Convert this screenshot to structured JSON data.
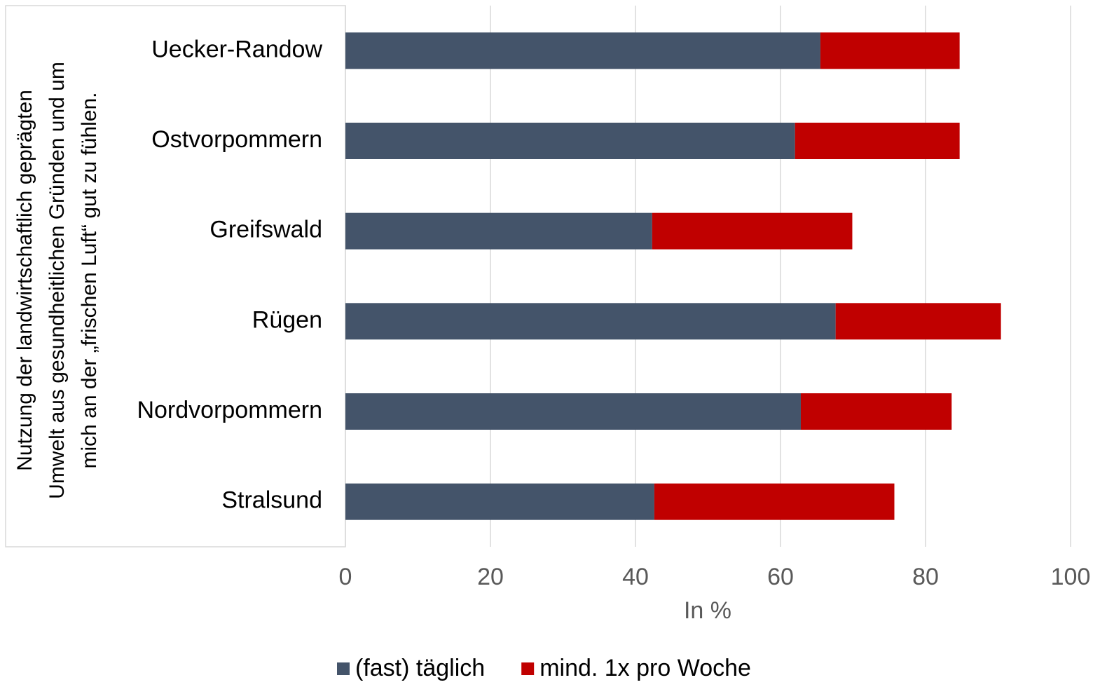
{
  "chart_data": {
    "type": "stacked-bar-horizontal",
    "ylabel": [
      "Nutzung der landwirtschaftlich geprägten",
      "Umwelt aus gesundheitlichen Gründen und um",
      "mich an der „frischen Luft“ gut zu fühlen."
    ],
    "xlabel": "In %",
    "categories": [
      "Uecker-Randow",
      "Ostvorpommern",
      "Greifswald",
      "Rügen",
      "Nordvorpommern",
      "Stralsund"
    ],
    "series": [
      {
        "name": "(fast) täglich",
        "color": "#44546a",
        "values": [
          65.5,
          62.0,
          42.3,
          67.6,
          62.8,
          42.6
        ]
      },
      {
        "name": "mind. 1x pro Woche",
        "color": "#c00000",
        "values": [
          19.2,
          22.7,
          27.6,
          22.8,
          20.8,
          33.1
        ]
      }
    ],
    "xlim": [
      0,
      100
    ],
    "xticks": [
      0,
      20,
      40,
      60,
      80,
      100
    ],
    "grid": true,
    "legend": "bottom"
  }
}
